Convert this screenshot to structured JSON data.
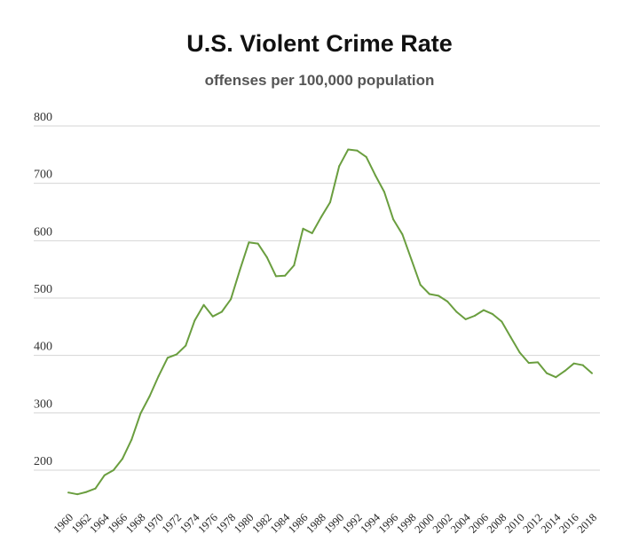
{
  "chart_data": {
    "type": "line",
    "title": "U.S. Violent Crime Rate",
    "subtitle": "offenses per 100,000 population",
    "xlabel": "",
    "ylabel": "",
    "ylim": [
      150,
      800
    ],
    "yticks": [
      200,
      300,
      400,
      500,
      600,
      700,
      800
    ],
    "xticks": [
      1960,
      1962,
      1964,
      1966,
      1968,
      1970,
      1972,
      1974,
      1976,
      1978,
      1980,
      1982,
      1984,
      1986,
      1988,
      1990,
      1992,
      1994,
      1996,
      1998,
      2000,
      2002,
      2004,
      2006,
      2008,
      2010,
      2012,
      2014,
      2016,
      2018
    ],
    "grid": true,
    "line_color": "#6a9e3f",
    "series": [
      {
        "x": [
          1960,
          1961,
          1962,
          1963,
          1964,
          1965,
          1966,
          1967,
          1968,
          1969,
          1970,
          1971,
          1972,
          1973,
          1974,
          1975,
          1976,
          1977,
          1978,
          1979,
          1980,
          1981,
          1982,
          1983,
          1984,
          1985,
          1986,
          1987,
          1988,
          1989,
          1990,
          1991,
          1992,
          1993,
          1994,
          1995,
          1996,
          1997,
          1998,
          1999,
          2000,
          2001,
          2002,
          2003,
          2004,
          2005,
          2006,
          2007,
          2008,
          2009,
          2010,
          2011,
          2012,
          2013,
          2014,
          2015,
          2016,
          2017,
          2018
        ],
        "values": [
          161,
          158,
          162,
          168,
          191,
          200,
          220,
          253,
          299,
          329,
          364,
          396,
          402,
          417,
          461,
          488,
          468,
          476,
          498,
          549,
          597,
          595,
          571,
          538,
          539,
          557,
          621,
          613,
          641,
          667,
          730,
          759,
          757,
          746,
          714,
          685,
          637,
          611,
          567,
          523,
          507,
          504,
          494,
          476,
          463,
          469,
          479,
          472,
          459,
          432,
          405,
          387,
          388,
          369,
          362,
          373,
          386,
          383,
          369
        ]
      }
    ]
  }
}
